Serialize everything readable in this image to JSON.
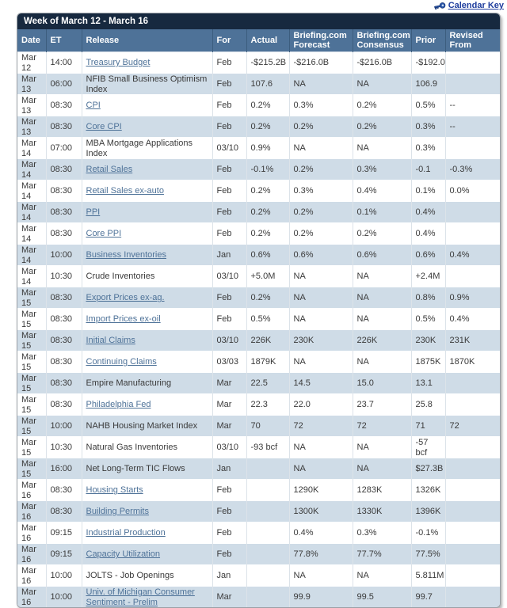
{
  "page": {
    "calendar_key_label": "Calendar Key",
    "key_icon": "key-icon"
  },
  "colors": {
    "navy_header": "#17293f",
    "column_header": "#4e7298",
    "alt_row": "#cfdce7",
    "link": "#4e7298",
    "calendar_key_link": "#1f3e9e"
  },
  "table": {
    "title": "Week of March 12 - March 16",
    "columns": [
      "Date",
      "ET",
      "Release",
      "For",
      "Actual",
      "Briefing.com Forecast",
      "Briefing.com Consensus",
      "Prior",
      "Revised From"
    ],
    "rows": [
      {
        "date": "Mar 12",
        "et": "14:00",
        "release": "Treasury Budget",
        "link": true,
        "for": "Feb",
        "actual": "-$215.2B",
        "forecast": "-$216.0B",
        "consensus": "-$216.0B",
        "prior": "-$192.0B",
        "revised": ""
      },
      {
        "date": "Mar 13",
        "et": "06:00",
        "release": "NFIB Small Business Optimism Index",
        "link": false,
        "for": "Feb",
        "actual": "107.6",
        "forecast": "NA",
        "consensus": "NA",
        "prior": "106.9",
        "revised": ""
      },
      {
        "date": "Mar 13",
        "et": "08:30",
        "release": "CPI",
        "link": true,
        "for": "Feb",
        "actual": "0.2%",
        "forecast": "0.3%",
        "consensus": "0.2%",
        "prior": "0.5%",
        "revised": "--"
      },
      {
        "date": "Mar 13",
        "et": "08:30",
        "release": "Core CPI",
        "link": true,
        "for": "Feb",
        "actual": "0.2%",
        "forecast": "0.2%",
        "consensus": "0.2%",
        "prior": "0.3%",
        "revised": "--"
      },
      {
        "date": "Mar 14",
        "et": "07:00",
        "release": "MBA Mortgage Applications Index",
        "link": false,
        "for": "03/10",
        "actual": "0.9%",
        "forecast": "NA",
        "consensus": "NA",
        "prior": "0.3%",
        "revised": ""
      },
      {
        "date": "Mar 14",
        "et": "08:30",
        "release": "Retail Sales",
        "link": true,
        "for": "Feb",
        "actual": "-0.1%",
        "forecast": "0.2%",
        "consensus": "0.3%",
        "prior": "-0.1",
        "revised": "-0.3%"
      },
      {
        "date": "Mar 14",
        "et": "08:30",
        "release": "Retail Sales ex-auto",
        "link": true,
        "for": "Feb",
        "actual": "0.2%",
        "forecast": "0.3%",
        "consensus": "0.4%",
        "prior": "0.1%",
        "revised": "0.0%"
      },
      {
        "date": "Mar 14",
        "et": "08:30",
        "release": "PPI",
        "link": true,
        "for": "Feb",
        "actual": "0.2%",
        "forecast": "0.2%",
        "consensus": "0.1%",
        "prior": "0.4%",
        "revised": ""
      },
      {
        "date": "Mar 14",
        "et": "08:30",
        "release": "Core PPI",
        "link": true,
        "for": "Feb",
        "actual": "0.2%",
        "forecast": "0.2%",
        "consensus": "0.2%",
        "prior": "0.4%",
        "revised": ""
      },
      {
        "date": "Mar 14",
        "et": "10:00",
        "release": "Business Inventories",
        "link": true,
        "for": "Jan",
        "actual": "0.6%",
        "forecast": "0.6%",
        "consensus": "0.6%",
        "prior": "0.6%",
        "revised": "0.4%"
      },
      {
        "date": "Mar 14",
        "et": "10:30",
        "release": "Crude Inventories",
        "link": false,
        "for": "03/10",
        "actual": "+5.0M",
        "forecast": "NA",
        "consensus": "NA",
        "prior": "+2.4M",
        "revised": ""
      },
      {
        "date": "Mar 15",
        "et": "08:30",
        "release": "Export Prices ex-ag.",
        "link": true,
        "for": "Feb",
        "actual": "0.2%",
        "forecast": "NA",
        "consensus": "NA",
        "prior": "0.8%",
        "revised": "0.9%"
      },
      {
        "date": "Mar 15",
        "et": "08:30",
        "release": "Import Prices ex-oil",
        "link": true,
        "for": "Feb",
        "actual": "0.5%",
        "forecast": "NA",
        "consensus": "NA",
        "prior": "0.5%",
        "revised": "0.4%"
      },
      {
        "date": "Mar 15",
        "et": "08:30",
        "release": "Initial Claims",
        "link": true,
        "for": "03/10",
        "actual": "226K",
        "forecast": "230K",
        "consensus": "226K",
        "prior": "230K",
        "revised": "231K"
      },
      {
        "date": "Mar 15",
        "et": "08:30",
        "release": "Continuing Claims",
        "link": true,
        "for": "03/03",
        "actual": "1879K",
        "forecast": "NA",
        "consensus": "NA",
        "prior": "1875K",
        "revised": "1870K"
      },
      {
        "date": "Mar 15",
        "et": "08:30",
        "release": "Empire Manufacturing",
        "link": false,
        "for": "Mar",
        "actual": "22.5",
        "forecast": "14.5",
        "consensus": "15.0",
        "prior": "13.1",
        "revised": ""
      },
      {
        "date": "Mar 15",
        "et": "08:30",
        "release": "Philadelphia Fed",
        "link": true,
        "for": "Mar",
        "actual": "22.3",
        "forecast": "22.0",
        "consensus": "23.7",
        "prior": "25.8",
        "revised": ""
      },
      {
        "date": "Mar 15",
        "et": "10:00",
        "release": "NAHB Housing Market Index",
        "link": false,
        "for": "Mar",
        "actual": "70",
        "forecast": "72",
        "consensus": "72",
        "prior": "71",
        "revised": "72"
      },
      {
        "date": "Mar 15",
        "et": "10:30",
        "release": "Natural Gas Inventories",
        "link": false,
        "for": "03/10",
        "actual": "-93 bcf",
        "forecast": "NA",
        "consensus": "NA",
        "prior": "-57 bcf",
        "revised": ""
      },
      {
        "date": "Mar 15",
        "et": "16:00",
        "release": "Net Long-Term TIC Flows",
        "link": false,
        "for": "Jan",
        "actual": "",
        "forecast": "NA",
        "consensus": "NA",
        "prior": "$27.3B",
        "revised": ""
      },
      {
        "date": "Mar 16",
        "et": "08:30",
        "release": "Housing Starts",
        "link": true,
        "for": "Feb",
        "actual": "",
        "forecast": "1290K",
        "consensus": "1283K",
        "prior": "1326K",
        "revised": ""
      },
      {
        "date": "Mar 16",
        "et": "08:30",
        "release": "Building Permits",
        "link": true,
        "for": "Feb",
        "actual": "",
        "forecast": "1300K",
        "consensus": "1330K",
        "prior": "1396K",
        "revised": ""
      },
      {
        "date": "Mar 16",
        "et": "09:15",
        "release": "Industrial Production",
        "link": true,
        "for": "Feb",
        "actual": "",
        "forecast": "0.4%",
        "consensus": "0.3%",
        "prior": "-0.1%",
        "revised": ""
      },
      {
        "date": "Mar 16",
        "et": "09:15",
        "release": "Capacity Utilization",
        "link": true,
        "for": "Feb",
        "actual": "",
        "forecast": "77.8%",
        "consensus": "77.7%",
        "prior": "77.5%",
        "revised": ""
      },
      {
        "date": "Mar 16",
        "et": "10:00",
        "release": "JOLTS - Job Openings",
        "link": false,
        "for": "Jan",
        "actual": "",
        "forecast": "NA",
        "consensus": "NA",
        "prior": "5.811M",
        "revised": ""
      },
      {
        "date": "Mar 16",
        "et": "10:00",
        "release": "Univ. of Michigan Consumer Sentiment - Prelim",
        "link": true,
        "for": "Mar",
        "actual": "",
        "forecast": "99.9",
        "consensus": "99.5",
        "prior": "99.7",
        "revised": ""
      }
    ]
  }
}
